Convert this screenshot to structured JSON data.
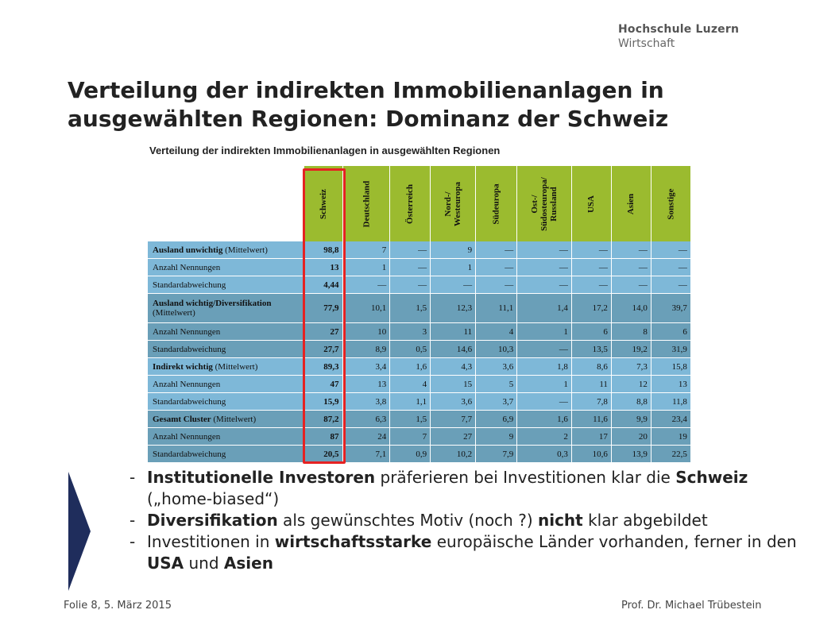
{
  "logo": {
    "line1": "Hochschule Luzern",
    "line2": "Wirtschaft"
  },
  "title": {
    "line1": "Verteilung der indirekten Immobilienanlagen in",
    "line2": "ausgewählten Regionen: Dominanz der Schweiz"
  },
  "table": {
    "title": "Verteilung der indirekten Immobilienanlagen in ausgewählten Regionen",
    "columns": [
      "Schweiz",
      "Deutschland",
      "Österreich",
      "Nord-/\nWesteuropa",
      "Südeuropa",
      "Ost-/\nSüdosteuropa/\nRussland",
      "USA",
      "Asien",
      "Sonstige"
    ],
    "rows": [
      {
        "label_bold": "Ausland unwichtig",
        "label_rest": " (Mittelwert)",
        "values": [
          "98,8",
          "7",
          "—",
          "9",
          "—",
          "—",
          "—",
          "—",
          "—"
        ]
      },
      {
        "label_bold": "",
        "label_rest": "Anzahl Nennungen",
        "values": [
          "13",
          "1",
          "—",
          "1",
          "—",
          "—",
          "—",
          "—",
          "—"
        ]
      },
      {
        "label_bold": "",
        "label_rest": "Standardabweichung",
        "values": [
          "4,44",
          "—",
          "—",
          "—",
          "—",
          "—",
          "—",
          "—",
          "—"
        ]
      },
      {
        "label_bold": "Ausland wichtig/Diversifikation",
        "label_rest": "(Mittelwert)",
        "values": [
          "77,9",
          "10,1",
          "1,5",
          "12,3",
          "11,1",
          "1,4",
          "17,2",
          "14,0",
          "39,7"
        ]
      },
      {
        "label_bold": "",
        "label_rest": "Anzahl Nennungen",
        "values": [
          "27",
          "10",
          "3",
          "11",
          "4",
          "1",
          "6",
          "8",
          "6"
        ]
      },
      {
        "label_bold": "",
        "label_rest": "Standardabweichung",
        "values": [
          "27,7",
          "8,9",
          "0,5",
          "14,6",
          "10,3",
          "—",
          "13,5",
          "19,2",
          "31,9"
        ]
      },
      {
        "label_bold": "Indirekt wichtig",
        "label_rest": " (Mittelwert)",
        "values": [
          "89,3",
          "3,4",
          "1,6",
          "4,3",
          "3,6",
          "1,8",
          "8,6",
          "7,3",
          "15,8"
        ]
      },
      {
        "label_bold": "",
        "label_rest": "Anzahl Nennungen",
        "values": [
          "47",
          "13",
          "4",
          "15",
          "5",
          "1",
          "11",
          "12",
          "13"
        ]
      },
      {
        "label_bold": "",
        "label_rest": "Standardabweichung",
        "values": [
          "15,9",
          "3,8",
          "1,1",
          "3,6",
          "3,7",
          "—",
          "7,8",
          "8,8",
          "11,8"
        ]
      },
      {
        "label_bold": "Gesamt Cluster",
        "label_rest": " (Mittelwert)",
        "values": [
          "87,2",
          "6,3",
          "1,5",
          "7,7",
          "6,9",
          "1,6",
          "11,6",
          "9,9",
          "23,4"
        ]
      },
      {
        "label_bold": "",
        "label_rest": "Anzahl Nennungen",
        "values": [
          "87",
          "24",
          "7",
          "27",
          "9",
          "2",
          "17",
          "20",
          "19"
        ]
      },
      {
        "label_bold": "",
        "label_rest": "Standardabweichung",
        "values": [
          "20,5",
          "7,1",
          "0,9",
          "10,2",
          "7,9",
          "0,3",
          "10,6",
          "13,9",
          "22,5"
        ]
      }
    ]
  },
  "bullets": [
    {
      "dash": "-",
      "parts": [
        {
          "t": "Institutionelle Investoren",
          "b": true
        },
        {
          "t": " präferieren bei Investitionen klar die ",
          "b": false
        },
        {
          "t": "Schweiz",
          "b": true
        },
        {
          "t": " („home-biased“)",
          "b": false
        }
      ]
    },
    {
      "dash": "-",
      "parts": [
        {
          "t": "Diversifikation",
          "b": true
        },
        {
          "t": " als gewünschtes Motiv (noch ?) ",
          "b": false
        },
        {
          "t": "nicht",
          "b": true
        },
        {
          "t": " klar abgebildet",
          "b": false
        }
      ]
    },
    {
      "dash": "-",
      "parts": [
        {
          "t": "Investitionen in ",
          "b": false
        },
        {
          "t": "wirtschaftsstarke",
          "b": true
        },
        {
          "t": " europäische Länder vorhanden, ferner in den ",
          "b": false
        },
        {
          "t": "USA",
          "b": true
        },
        {
          "t": " und ",
          "b": false
        },
        {
          "t": "Asien",
          "b": true
        }
      ]
    }
  ],
  "footer": {
    "left": "Folie 8, 5. März 2015",
    "right": "Prof. Dr. Michael Trübestein"
  },
  "colors": {
    "header_green": "#9bbb2f",
    "row_light": "#7eb8d8",
    "row_dark": "#6a9fb8",
    "highlight": "#e52222",
    "chevron": "#1f2d5c"
  }
}
